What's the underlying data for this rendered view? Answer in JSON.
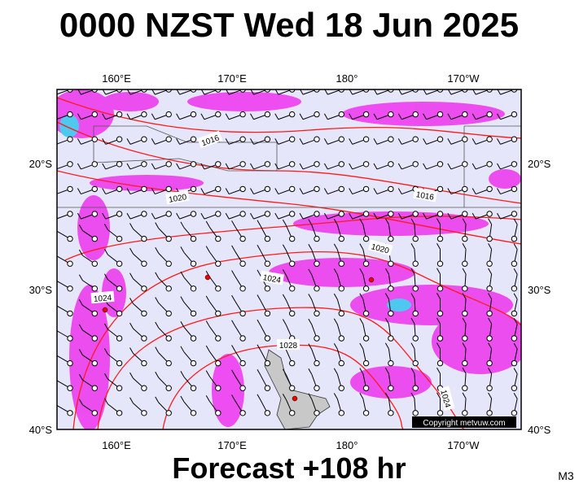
{
  "title": "0000 NZST Wed 18 Jun 2025",
  "axes": {
    "top_labels": [
      "160°E",
      "170°E",
      "180°",
      "170°W"
    ],
    "bottom_labels": [
      "160°E",
      "170°E",
      "180°",
      "170°W"
    ],
    "left_labels": [
      "20°S",
      "30°S",
      "40°S"
    ],
    "right_labels": [
      "20°S",
      "30°S",
      "40°S"
    ]
  },
  "isobar_labels": [
    "1016",
    "1020",
    "1016",
    "1020",
    "1024",
    "1024",
    "1028",
    "1024"
  ],
  "copyright": "Copyright metvuw.com",
  "footer": "Forecast +108 hr",
  "model": "M3"
}
